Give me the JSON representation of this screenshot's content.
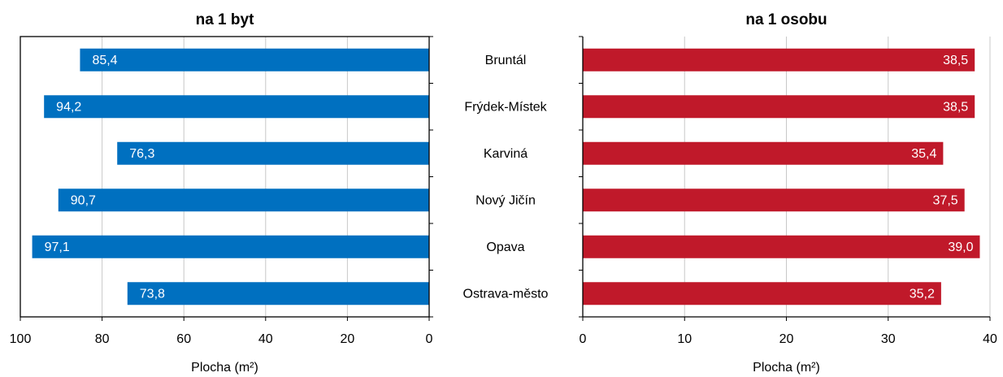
{
  "chart_data": [
    {
      "type": "bar",
      "orientation": "horizontal",
      "title": "na 1 byt",
      "x_label": "Plocha (m²)",
      "categories": [
        "Bruntál",
        "Frýdek-Místek",
        "Karviná",
        "Nový Jičín",
        "Opava",
        "Ostrava-město"
      ],
      "values": [
        85.4,
        94.2,
        76.3,
        90.7,
        97.1,
        73.8
      ],
      "value_labels": [
        "85,4",
        "94,2",
        "76,3",
        "90,7",
        "97,1",
        "73,8"
      ],
      "color": "#0070c0",
      "xlim": [
        100,
        0
      ],
      "xticks": [
        100,
        80,
        60,
        40,
        20,
        0
      ],
      "grid": true
    },
    {
      "type": "bar",
      "orientation": "horizontal",
      "title": "na 1 osobu",
      "x_label": "Plocha (m²)",
      "values": [
        38.5,
        38.5,
        35.4,
        37.5,
        39.0,
        35.2
      ],
      "value_labels": [
        "38,5",
        "38,5",
        "35,4",
        "37,5",
        "39,0",
        "35,2"
      ],
      "color": "#c0192a",
      "xlim": [
        0,
        40
      ],
      "xticks": [
        0,
        10,
        20,
        30,
        40
      ],
      "grid": true
    }
  ]
}
